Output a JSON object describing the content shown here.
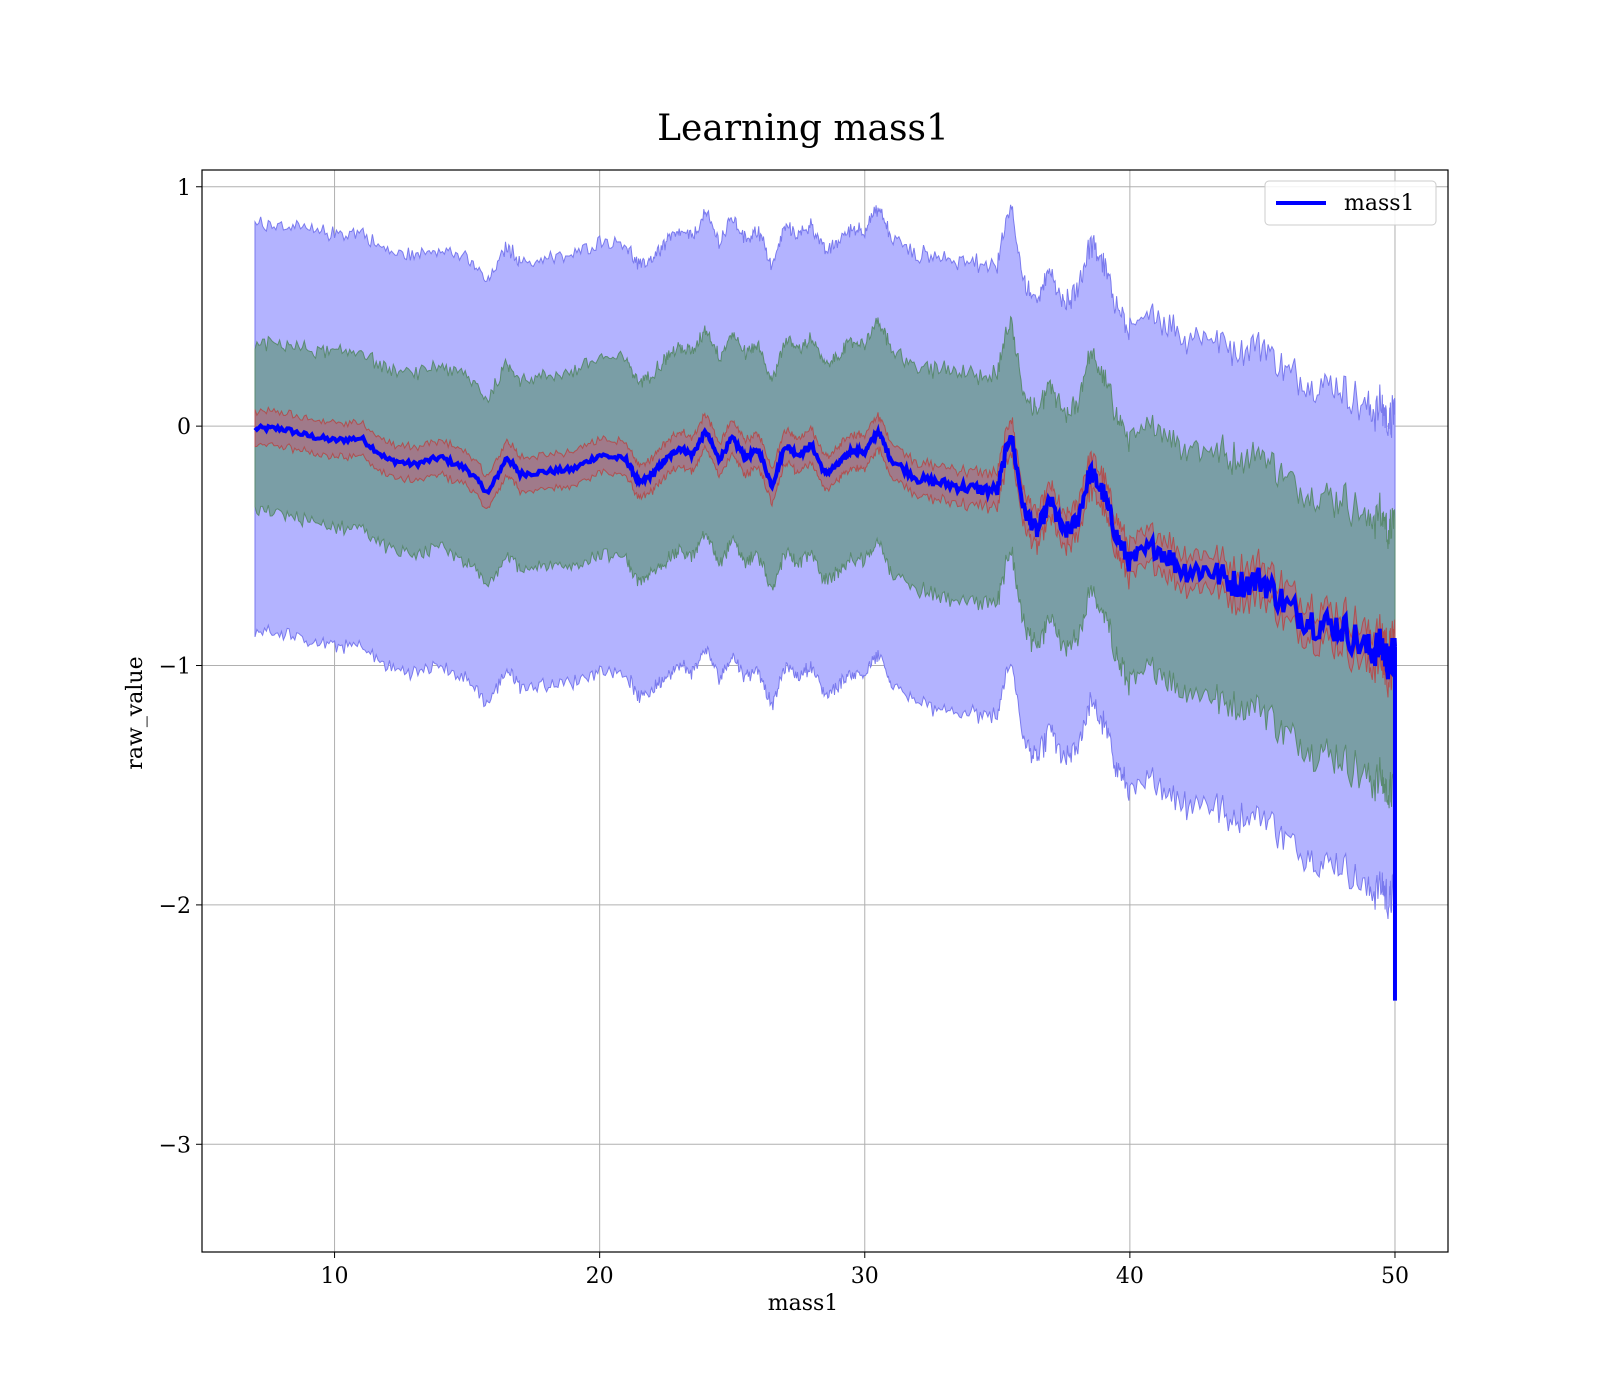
{
  "chart_data": {
    "type": "line",
    "title": "Learning mass1",
    "xlabel": "mass1",
    "ylabel": "raw_value",
    "xlim": [
      5,
      52
    ],
    "ylim": [
      -3.45,
      1.07
    ],
    "xticks": [
      10,
      20,
      30,
      40,
      50
    ],
    "yticks": [
      1,
      0,
      -1,
      -2,
      -3
    ],
    "xtick_labels": [
      "10",
      "20",
      "30",
      "40",
      "50"
    ],
    "ytick_labels": [
      "1",
      "0",
      "−1",
      "−2",
      "−3"
    ],
    "grid": true,
    "legend": {
      "placement": "top-right",
      "entries": [
        "mass1"
      ]
    },
    "colors": {
      "line": "#0000ff",
      "band_outer": "#b3b3ff",
      "band_outer_edge": "#7a7aee",
      "band_middle": "#7a9ea6",
      "band_middle_edge": "#5a8a70",
      "band_inner": "#a07a8a",
      "band_inner_edge": "#b05050"
    },
    "series": [
      {
        "name": "mass1",
        "x": [
          7,
          8,
          9,
          10,
          11,
          12,
          13,
          14,
          15,
          15.8,
          16.5,
          17,
          18,
          19,
          20,
          21,
          21.5,
          22,
          22.5,
          23,
          23.5,
          24,
          24.5,
          25,
          25.5,
          26,
          26.5,
          27,
          27.5,
          28,
          28.5,
          29,
          29.5,
          30,
          30.5,
          31,
          32,
          33,
          34,
          35,
          35.5,
          36,
          36.5,
          37,
          37.5,
          38,
          38.5,
          39,
          39.5,
          40,
          41,
          42,
          43,
          44,
          45,
          46,
          47,
          48,
          49,
          49.5,
          49.8,
          50
        ],
        "y": [
          -0.01,
          -0.01,
          -0.04,
          -0.06,
          -0.05,
          -0.14,
          -0.16,
          -0.13,
          -0.18,
          -0.28,
          -0.13,
          -0.2,
          -0.19,
          -0.18,
          -0.12,
          -0.14,
          -0.24,
          -0.2,
          -0.14,
          -0.09,
          -0.12,
          -0.02,
          -0.14,
          -0.05,
          -0.13,
          -0.1,
          -0.25,
          -0.08,
          -0.12,
          -0.08,
          -0.2,
          -0.16,
          -0.1,
          -0.11,
          -0.02,
          -0.14,
          -0.22,
          -0.24,
          -0.26,
          -0.27,
          -0.02,
          -0.35,
          -0.44,
          -0.31,
          -0.45,
          -0.4,
          -0.19,
          -0.28,
          -0.46,
          -0.57,
          -0.5,
          -0.6,
          -0.6,
          -0.66,
          -0.64,
          -0.76,
          -0.82,
          -0.84,
          -0.94,
          -0.92,
          -1.0,
          -0.92
        ],
        "drop_to": -2.4,
        "bands": {
          "inner_halfwidth": 0.07,
          "middle_halfwidth_start": 0.35,
          "middle_halfwidth_end": 0.55,
          "outer_halfwidth_start": 0.85,
          "outer_halfwidth_end": 1.0
        }
      }
    ]
  }
}
